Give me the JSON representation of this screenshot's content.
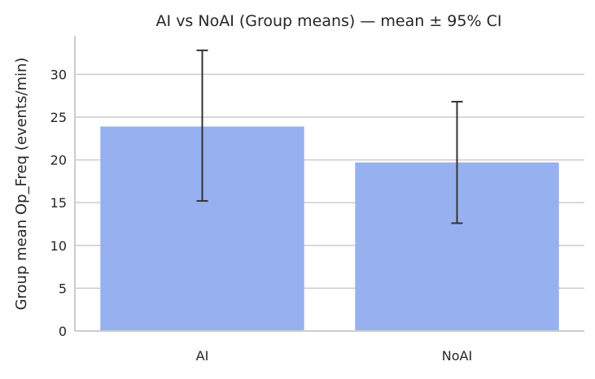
{
  "chart_data": {
    "type": "bar",
    "title": "AI vs NoAI (Group means) — mean ± 95% CI",
    "xlabel": "",
    "ylabel": "Group mean Op_Freq (events/min)",
    "categories": [
      "AI",
      "NoAI"
    ],
    "values": [
      23.9,
      19.7
    ],
    "error_bars": [
      {
        "low": 15.2,
        "high": 32.8
      },
      {
        "low": 12.6,
        "high": 26.8
      }
    ],
    "ylim": [
      0,
      34.5
    ],
    "yticks": [
      0,
      5,
      10,
      15,
      20,
      25,
      30
    ],
    "grid": "horizontal",
    "bar_color": "#97b0f0",
    "error_color": "#333333",
    "grid_color": "#cccccc"
  }
}
